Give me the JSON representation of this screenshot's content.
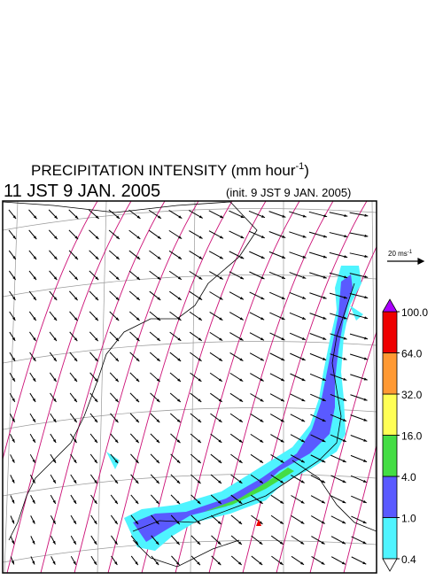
{
  "header": {
    "title": "PRECIPITATION INTENSITY (mm hour",
    "title_exponent": "-1",
    "title_close": ")",
    "time": "11 JST 9 JAN. 2005",
    "init": "(init. 9 JST 9 JAN. 2005)"
  },
  "vector_scale": {
    "label": "20 ms",
    "exponent": "-1"
  },
  "colorbar": {
    "levels": [
      {
        "value": 0.4,
        "label": "0.4"
      },
      {
        "value": 1,
        "label": "1.0"
      },
      {
        "value": 4,
        "label": "4.0"
      },
      {
        "value": 16,
        "label": "16.0"
      },
      {
        "value": 32,
        "label": "32.0"
      },
      {
        "value": 64,
        "label": "64.0"
      },
      {
        "value": 100,
        "label": "100.0"
      }
    ],
    "colors": [
      "#4ff4ff",
      "#5a5aff",
      "#44dd44",
      "#ffff55",
      "#ff9933",
      "#ee0000"
    ],
    "under_color": "#ffffff",
    "over_color": "#aa00ff"
  }
}
